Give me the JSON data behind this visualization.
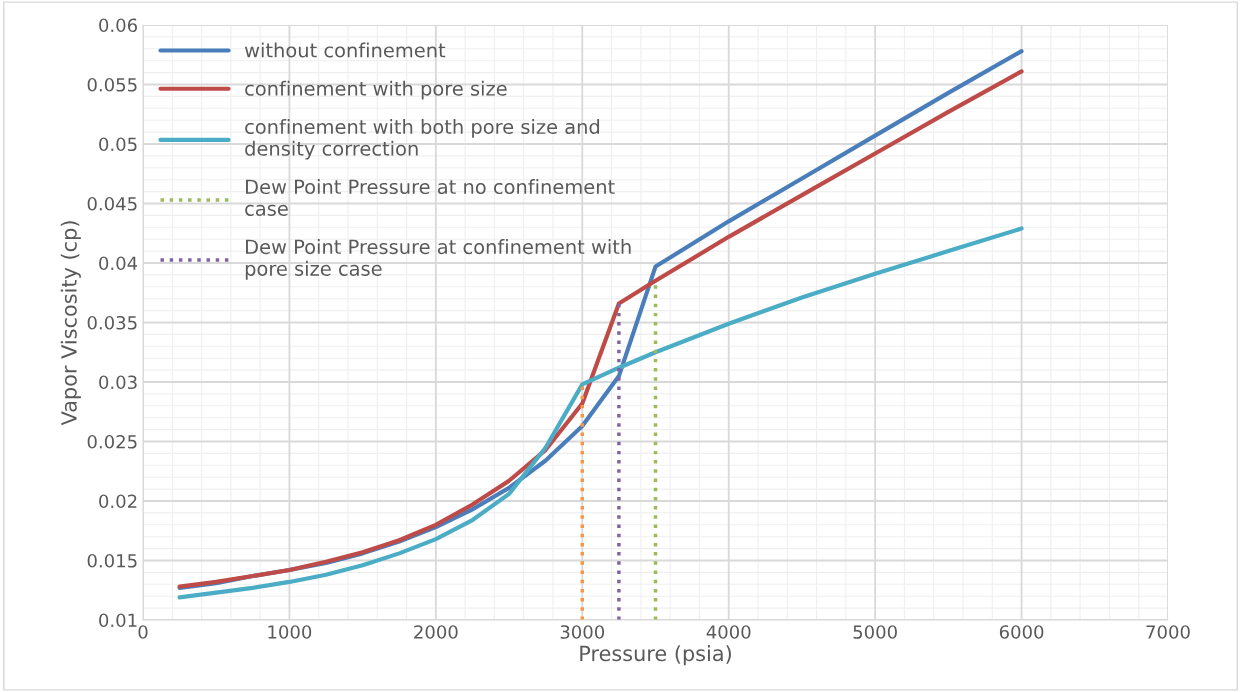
{
  "chart_data": {
    "type": "line",
    "xlabel": "Pressure (psia)",
    "ylabel": "Vapor Viscosity (cp)",
    "xlim": [
      0,
      7000
    ],
    "xticks": [
      0,
      1000,
      2000,
      3000,
      4000,
      5000,
      6000,
      7000
    ],
    "ylim": [
      0.01,
      0.06
    ],
    "yticks": [
      0.01,
      0.015,
      0.02,
      0.025,
      0.03,
      0.035,
      0.04,
      0.045,
      0.05,
      0.055,
      0.06
    ],
    "grid": true,
    "legend": "top left",
    "line_style": "solid",
    "marker": "none",
    "series": [
      {
        "name": "without confinement",
        "color": "#4a7ebb",
        "x": [
          250,
          500,
          750,
          1000,
          1250,
          1500,
          1750,
          2000,
          2250,
          2500,
          2750,
          3000,
          3250,
          3500,
          4000,
          4500,
          5000,
          5500,
          6000
        ],
        "values": [
          0.0127,
          0.0131,
          0.0137,
          0.0142,
          0.0148,
          0.0156,
          0.0166,
          0.0178,
          0.0193,
          0.0211,
          0.0234,
          0.0263,
          0.0305,
          0.0397,
          0.0435,
          0.0471,
          0.0507,
          0.0543,
          0.0578
        ]
      },
      {
        "name": "confinement with pore size",
        "color": "#be4b48",
        "x": [
          250,
          500,
          750,
          1000,
          1250,
          1500,
          1750,
          2000,
          2250,
          2500,
          2750,
          3000,
          3250,
          3500,
          4000,
          4500,
          5000,
          5500,
          6000
        ],
        "values": [
          0.0128,
          0.0132,
          0.0137,
          0.0142,
          0.0149,
          0.0157,
          0.0167,
          0.018,
          0.0197,
          0.0217,
          0.0243,
          0.0282,
          0.0366,
          0.0385,
          0.0422,
          0.0457,
          0.0492,
          0.0527,
          0.0561
        ]
      },
      {
        "name": "confinement with both pore size and\ndensity correction",
        "color": "#4bacc6",
        "x": [
          250,
          500,
          750,
          1000,
          1250,
          1500,
          1750,
          2000,
          2250,
          2500,
          2750,
          3000,
          3250,
          3500,
          4000,
          4500,
          5000,
          5500,
          6000
        ],
        "values": [
          0.0119,
          0.0123,
          0.0127,
          0.0132,
          0.0138,
          0.0146,
          0.0156,
          0.0168,
          0.0184,
          0.0206,
          0.0245,
          0.0298,
          0.0312,
          0.0325,
          0.0349,
          0.0371,
          0.0391,
          0.041,
          0.0429
        ]
      },
      {
        "name": "Dew Point Pressure at no confinement\ncase",
        "color": "#9bbb59",
        "line_style": "dotted",
        "x": [
          3500,
          3500
        ],
        "values": [
          0.01,
          0.0385
        ]
      },
      {
        "name": "Dew Point Pressure at confinement with\npore size case",
        "color": "#8064a2",
        "line_style": "dotted",
        "x": [
          3250,
          3250
        ],
        "values": [
          0.01,
          0.0366
        ]
      },
      {
        "color": "#f79646",
        "line_style": "dotted",
        "x": [
          3000,
          3000
        ],
        "values": [
          0.01,
          0.0298
        ]
      }
    ]
  }
}
